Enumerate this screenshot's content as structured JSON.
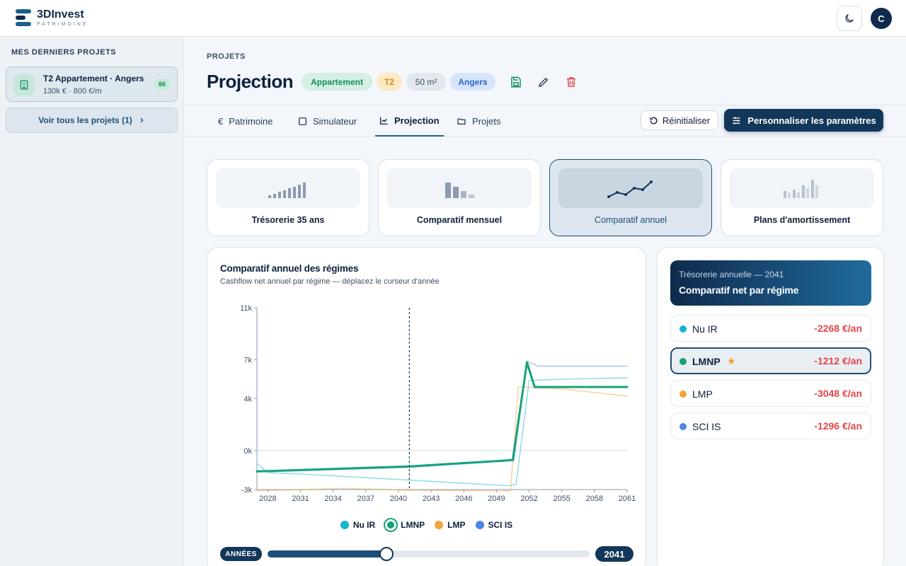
{
  "app": {
    "logo_title": "3DInvest",
    "logo_sub": "PATRIMOINE",
    "avatar_initial": "C"
  },
  "sidebar": {
    "heading": "MES DERNIERS PROJETS",
    "project": {
      "name": "T2 Appartement · Angers",
      "meta": "130k € · 800 €/m",
      "score": "86"
    },
    "see_all": "Voir tous les projets (1)"
  },
  "header": {
    "breadcrumb": "PROJETS",
    "title": "Projection",
    "tags": [
      "Appartement",
      "T2",
      "50 m²",
      "Angers"
    ]
  },
  "tabs": [
    {
      "label": "Patrimoine",
      "icon": "euro-icon"
    },
    {
      "label": "Simulateur",
      "icon": "square-icon"
    },
    {
      "label": "Projection",
      "icon": "line-chart-icon",
      "active": true
    },
    {
      "label": "Projets",
      "icon": "folder-icon"
    }
  ],
  "actions": {
    "reset": "Réinitialiser",
    "customize": "Personnaliser les paramètres"
  },
  "views": [
    {
      "label": "Trésorerie 35 ans"
    },
    {
      "label": "Comparatif mensuel"
    },
    {
      "label": "Comparatif annuel",
      "active": true
    },
    {
      "label": "Plans d'amortissement"
    }
  ],
  "chart": {
    "title": "Comparatif annuel des régimes",
    "subtitle": "Cashflow net annuel par régime — déplacez le curseur d'année",
    "years_label": "ANNÉES",
    "selected_year": "2041",
    "slider_fraction": 0.37
  },
  "chart_data": {
    "type": "line",
    "y_ticks": [
      "11k",
      "7k",
      "4k",
      "0k",
      "-3k"
    ],
    "y_tick_values": [
      11000,
      7000,
      4000,
      0,
      -3000
    ],
    "x_ticks": [
      "2028",
      "2031",
      "2034",
      "2037",
      "2040",
      "2043",
      "2046",
      "2049",
      "2052",
      "2055",
      "2058",
      "2061"
    ],
    "xlim": [
      2027,
      2061
    ],
    "ylim": [
      -3000,
      11000
    ],
    "selected_year": 2041,
    "grid": true,
    "legend_position": "bottom",
    "series": [
      {
        "name": "Nu IR",
        "color": "#17b4cc",
        "points": [
          [
            2027,
            -1000
          ],
          [
            2028,
            -1700
          ],
          [
            2031,
            -1800
          ],
          [
            2041,
            -2268
          ],
          [
            2050,
            -2700
          ],
          [
            2050.8,
            -2600
          ],
          [
            2052,
            5400
          ],
          [
            2055,
            5500
          ],
          [
            2061,
            5600
          ]
        ]
      },
      {
        "name": "LMNP",
        "color": "#15a37a",
        "selected": true,
        "points": [
          [
            2027,
            -1600
          ],
          [
            2041,
            -1212
          ],
          [
            2050,
            -750
          ],
          [
            2050.5,
            -700
          ],
          [
            2051.8,
            6800
          ],
          [
            2052.5,
            4900
          ],
          [
            2055,
            4900
          ],
          [
            2061,
            4900
          ]
        ]
      },
      {
        "name": "LMP",
        "color": "#f2a33a",
        "points": [
          [
            2027,
            -3100
          ],
          [
            2035,
            -2900
          ],
          [
            2041,
            -3048
          ],
          [
            2050,
            -3100
          ],
          [
            2050.3,
            -3100
          ],
          [
            2051,
            4900
          ],
          [
            2055,
            4750
          ],
          [
            2061,
            4200
          ]
        ]
      },
      {
        "name": "SCI IS",
        "color": "#4a86e8",
        "points": [
          [
            2027,
            -1650
          ],
          [
            2041,
            -1296
          ],
          [
            2050,
            -800
          ],
          [
            2050.6,
            -800
          ],
          [
            2051.8,
            6900
          ],
          [
            2052.8,
            6500
          ],
          [
            2055,
            6500
          ],
          [
            2061,
            6500
          ]
        ]
      }
    ]
  },
  "comparison": {
    "kicker": "Trésorerie annuelle — 2041",
    "title": "Comparatif net par régime",
    "regimes": [
      {
        "name": "Nu IR",
        "value": "-2268 €/an",
        "color": "#17b4cc"
      },
      {
        "name": "LMNP",
        "value": "-1212 €/an",
        "color": "#15a37a",
        "best": true
      },
      {
        "name": "LMP",
        "value": "-3048 €/an",
        "color": "#f2a33a"
      },
      {
        "name": "SCI IS",
        "value": "-1296 €/an",
        "color": "#4a86e8"
      }
    ]
  }
}
